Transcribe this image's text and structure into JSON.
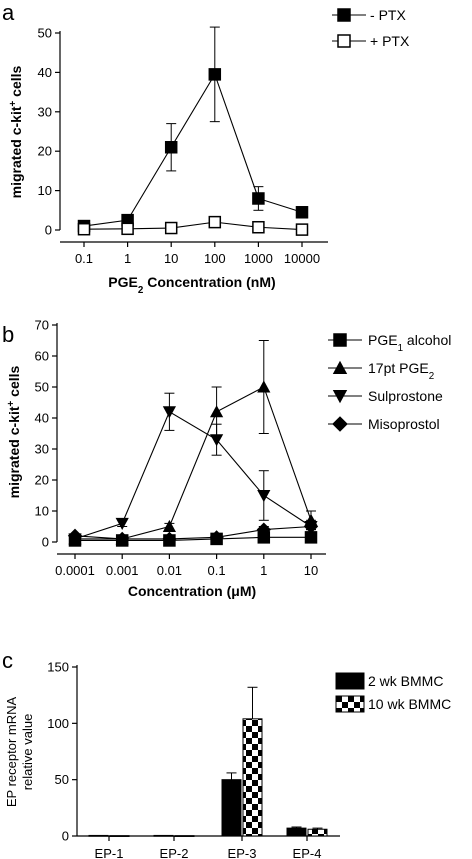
{
  "chart_data": [
    {
      "panel": "a",
      "type": "line",
      "xlabel": "PGE₂ Concentration (nM)",
      "ylabel": "migrated c-kit⁺ cells",
      "x_scale": "log",
      "categories": [
        "0.1",
        "1",
        "10",
        "100",
        "1000",
        "10000"
      ],
      "x": [
        0.1,
        1,
        10,
        100,
        1000,
        10000
      ],
      "ylim": [
        0,
        50
      ],
      "yticks": [
        0,
        10,
        20,
        30,
        40,
        50
      ],
      "legend_position": "top-right",
      "series": [
        {
          "name": "- PTX",
          "marker": "filled-square",
          "values": [
            1,
            2.5,
            21,
            39.5,
            8,
            4.5
          ],
          "errors": [
            0.5,
            1,
            6,
            12,
            3,
            1
          ]
        },
        {
          "name": "+ PTX",
          "marker": "open-square",
          "values": [
            0.2,
            0.3,
            0.5,
            2,
            0.7,
            0.1
          ],
          "errors": [
            0.3,
            0.3,
            0.3,
            0.5,
            0.3,
            0.3
          ]
        }
      ]
    },
    {
      "panel": "b",
      "type": "line",
      "xlabel": "Concentration (μM)",
      "ylabel": "migrated c-kit⁺ cells",
      "x_scale": "log",
      "categories": [
        "0.0001",
        "0.001",
        "0.01",
        "0.1",
        "1",
        "10"
      ],
      "x": [
        0.0001,
        0.001,
        0.01,
        0.1,
        1,
        10
      ],
      "ylim": [
        0,
        70
      ],
      "yticks": [
        0,
        10,
        20,
        30,
        40,
        50,
        60,
        70
      ],
      "legend_position": "top-right",
      "series": [
        {
          "name": "PGE₁ alcohol",
          "marker": "filled-square",
          "values": [
            0.5,
            0.5,
            0.5,
            1,
            1.5,
            1.5
          ],
          "errors": [
            0.3,
            0.3,
            0.3,
            0.3,
            0.3,
            0.3
          ]
        },
        {
          "name": "17pt PGE₂",
          "marker": "triangle-up",
          "values": [
            1,
            1,
            5,
            42,
            50,
            7
          ],
          "errors": [
            0.5,
            0.5,
            1,
            8,
            15,
            3
          ]
        },
        {
          "name": "Sulprostone",
          "marker": "triangle-down",
          "values": [
            1,
            6,
            42,
            33,
            15,
            5
          ],
          "errors": [
            0.5,
            1,
            6,
            5,
            8,
            2
          ]
        },
        {
          "name": "Misoprostol",
          "marker": "diamond",
          "values": [
            2,
            1,
            1,
            1.5,
            4,
            5
          ],
          "errors": [
            0.5,
            0.5,
            0.5,
            0.5,
            1,
            1
          ]
        }
      ]
    },
    {
      "panel": "c",
      "type": "bar",
      "ylabel_lines": [
        "EP receptor mRNA",
        "relative value"
      ],
      "xlabel": "",
      "categories": [
        "EP-1",
        "EP-2",
        "EP-3",
        "EP-4"
      ],
      "ylim": [
        0,
        150
      ],
      "yticks": [
        0,
        50,
        100,
        150
      ],
      "legend_position": "top-right",
      "series": [
        {
          "name": "2 wk BMMC",
          "fill": "solid-black",
          "values": [
            0.5,
            0.5,
            50,
            7
          ],
          "errors": [
            0,
            0,
            6,
            1
          ]
        },
        {
          "name": "10 wk BMMC",
          "fill": "checkerboard",
          "values": [
            0.3,
            0.3,
            104,
            6
          ],
          "errors": [
            0,
            0,
            28,
            1
          ]
        }
      ]
    }
  ],
  "colors": {
    "ink": "#000000",
    "background": "#ffffff"
  }
}
